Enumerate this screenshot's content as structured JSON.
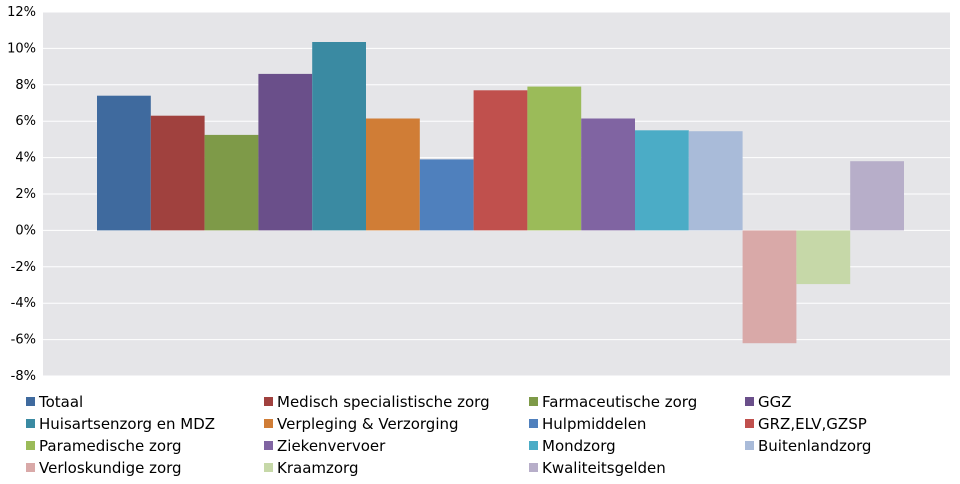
{
  "chart_data": {
    "type": "bar",
    "title": "",
    "xlabel": "",
    "ylabel": "",
    "ylim": [
      -8,
      12
    ],
    "ytick_labels": [
      "12%",
      "10%",
      "8%",
      "6%",
      "4%",
      "2%",
      "0%",
      "-2%",
      "-4%",
      "-6%",
      "-8%"
    ],
    "ytick_values": [
      12,
      10,
      8,
      6,
      4,
      2,
      0,
      -2,
      -4,
      -6,
      -8
    ],
    "grid": true,
    "legend_position": "bottom",
    "series": [
      {
        "name": "Totaal",
        "value": 7.4,
        "color": "#3f6a9e"
      },
      {
        "name": "Medisch specialistische zorg",
        "value": 6.3,
        "color": "#a0413e"
      },
      {
        "name": "Farmaceutische zorg",
        "value": 5.25,
        "color": "#7e9a48"
      },
      {
        "name": "GGZ",
        "value": 8.6,
        "color": "#6a4f8a"
      },
      {
        "name": "Huisartsenzorg en MDZ",
        "value": 10.35,
        "color": "#3a8aa2"
      },
      {
        "name": "Verpleging & Verzorging",
        "value": 6.15,
        "color": "#d07d36"
      },
      {
        "name": "Hulpmiddelen",
        "value": 3.9,
        "color": "#4f80bd"
      },
      {
        "name": "GRZ,ELV,GZSP",
        "value": 7.7,
        "color": "#c0504d"
      },
      {
        "name": "Paramedische zorg",
        "value": 7.9,
        "color": "#9bbb59"
      },
      {
        "name": "Ziekenvervoer",
        "value": 6.15,
        "color": "#8064a2"
      },
      {
        "name": "Mondzorg",
        "value": 5.5,
        "color": "#4bacc6"
      },
      {
        "name": "Buitenlandzorg",
        "value": 5.45,
        "color": "#a9bbd9"
      },
      {
        "name": "Verloskundige zorg",
        "value": -6.2,
        "color": "#d9a9a8"
      },
      {
        "name": "Kraamzorg",
        "value": -2.95,
        "color": "#c6d8a8"
      },
      {
        "name": "Kwaliteitsgelden",
        "value": 3.8,
        "color": "#b7aec9"
      }
    ]
  }
}
